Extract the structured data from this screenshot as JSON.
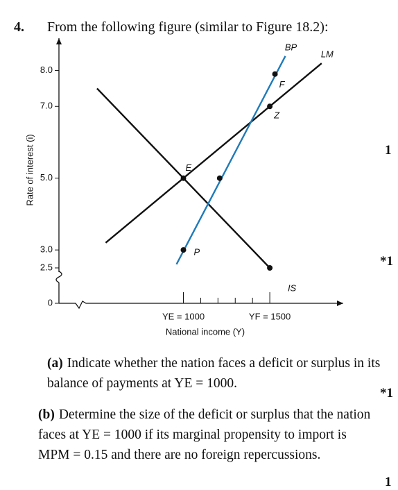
{
  "problem": {
    "number": "4.",
    "intro": "From the following figure (similar to Figure 18.2):"
  },
  "chart_data": {
    "type": "line",
    "ylabel": "Rate of interest (i)",
    "xlabel": "National income (Y)",
    "xlim": [
      0,
      1925
    ],
    "ylim": [
      0,
      8.9
    ],
    "x_break": [
      0,
      400
    ],
    "y_break": [
      0,
      2.5
    ],
    "yticks": [
      0,
      {
        "value": 2.5,
        "label": "2.5"
      },
      {
        "value": 3,
        "label": "3.0"
      },
      {
        "value": 5,
        "label": "5.0"
      },
      {
        "value": 7,
        "label": "7.0"
      },
      {
        "value": 8,
        "label": "8.0"
      }
    ],
    "xticks": [
      {
        "value": 1000,
        "label": "YE = 1000"
      },
      {
        "value": 1500,
        "label": "YF = 1500"
      }
    ],
    "xminorticks": [
      1100,
      1200,
      1300,
      1400
    ],
    "series": [
      {
        "name": "IS",
        "color": "#111111",
        "x": [
          500,
          1500
        ],
        "values": [
          7.5,
          2.5
        ]
      },
      {
        "name": "LM",
        "color": "#111111",
        "x": [
          550,
          1800
        ],
        "values": [
          3.2,
          8.2
        ]
      },
      {
        "name": "BP",
        "color": "#1f7ab8",
        "x": [
          960,
          1590
        ],
        "values": [
          2.6,
          8.4
        ]
      }
    ],
    "points": [
      {
        "label": "E",
        "x": 1000,
        "y": 5
      },
      {
        "label": "P",
        "x": 1000,
        "y": 3
      },
      {
        "label": null,
        "x": 1210,
        "y": 5
      },
      {
        "label": "F",
        "x": 1530,
        "y": 7.9
      },
      {
        "label": "Z",
        "x": 1500,
        "y": 7
      },
      {
        "label": null,
        "x": 1500,
        "y": 2.5
      }
    ]
  },
  "parts": [
    {
      "label": "(a)",
      "text": "Indicate whether the nation faces a deficit or surplus in its balance of payments at YE = 1000."
    },
    {
      "label": "(b)",
      "text": "Determine the size of the deficit or surplus that the nation faces at YE = 1000 if its marginal propensity to import is MPM = 0.15 and there are no foreign repercussions."
    }
  ],
  "margin_marks": [
    "1",
    "*1",
    "*1",
    "1"
  ]
}
